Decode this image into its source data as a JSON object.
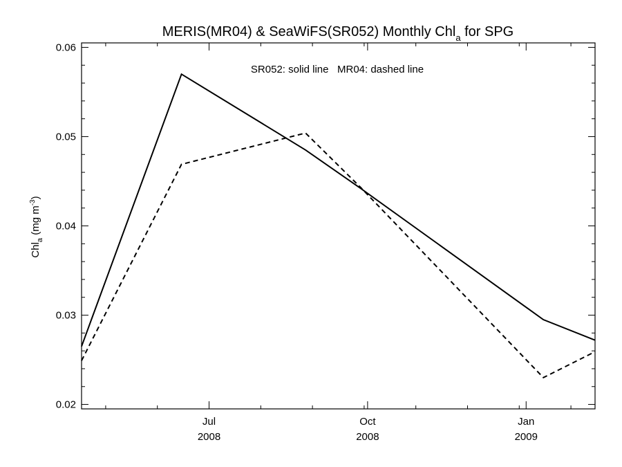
{
  "chart_data": {
    "type": "line",
    "title": {
      "main": "MERIS(MR04) & SeaWiFS(SR052) Monthly Chl",
      "sub": "a",
      "tail": " for SPG"
    },
    "ylabel": {
      "main": "Chl",
      "sub": "a",
      "unit": " (mg m",
      "sup": "-3",
      "close": ")"
    },
    "annotation": "SR052: solid line   MR04: dashed line",
    "ylim": [
      0.0195,
      0.0605
    ],
    "xlim": [
      0,
      149
    ],
    "yticks": [
      {
        "value": 0.02,
        "label": "0.02"
      },
      {
        "value": 0.03,
        "label": "0.03"
      },
      {
        "value": 0.04,
        "label": "0.04"
      },
      {
        "value": 0.05,
        "label": "0.05"
      },
      {
        "value": 0.06,
        "label": "0.06"
      }
    ],
    "xmajor": [
      {
        "x": 37,
        "month": "Jul",
        "year": "2008"
      },
      {
        "x": 83,
        "month": "Oct",
        "year": "2008"
      },
      {
        "x": 129,
        "month": "Jan",
        "year": "2009"
      }
    ],
    "series": [
      {
        "name": "SR052",
        "dash": "solid",
        "x": [
          0,
          29,
          65,
          81,
          134,
          149
        ],
        "y": [
          0.0265,
          0.057,
          0.0485,
          0.0442,
          0.0295,
          0.0272
        ]
      },
      {
        "name": "MR04",
        "dash": "dashed",
        "x": [
          0,
          29,
          65,
          81,
          134,
          149
        ],
        "y": [
          0.0249,
          0.0469,
          0.0504,
          0.0443,
          0.023,
          0.0259
        ]
      }
    ]
  }
}
